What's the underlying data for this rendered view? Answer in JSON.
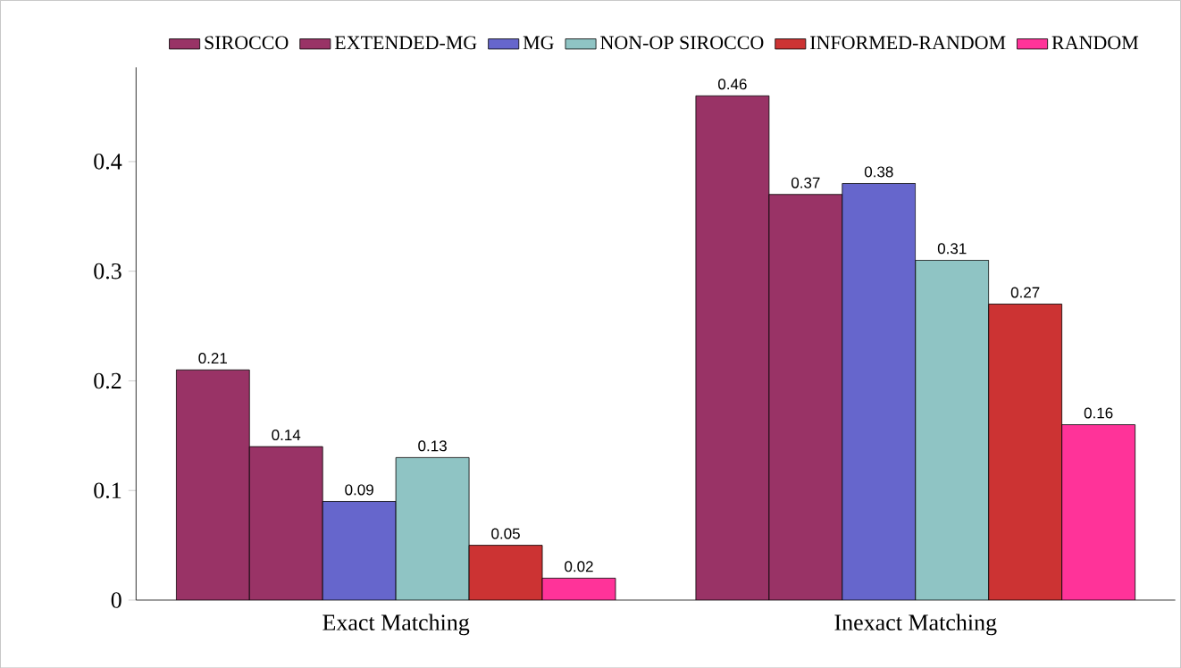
{
  "chart_data": {
    "type": "bar",
    "categories": [
      "Exact Matching",
      "Inexact Matching"
    ],
    "series": [
      {
        "name": "SIROCCO",
        "color": "#993366",
        "values": [
          0.21,
          0.46
        ]
      },
      {
        "name": "EXTENDED-MG",
        "color": "#993366",
        "values": [
          0.14,
          0.37
        ]
      },
      {
        "name": "MG",
        "color": "#6666cc",
        "values": [
          0.09,
          0.38
        ]
      },
      {
        "name": "NON-OP SIROCCO",
        "color": "#8fc4c4",
        "values": [
          0.13,
          0.31
        ]
      },
      {
        "name": "INFORMED-RANDOM",
        "color": "#cc3333",
        "values": [
          0.05,
          0.27
        ]
      },
      {
        "name": "RANDOM",
        "color": "#ff3399",
        "values": [
          0.02,
          0.16
        ]
      }
    ],
    "ylim": [
      0,
      0.486
    ],
    "yticks": [
      0,
      0.1,
      0.2,
      0.3,
      0.4
    ],
    "grid": false,
    "legend": "top",
    "data_labels": true
  }
}
